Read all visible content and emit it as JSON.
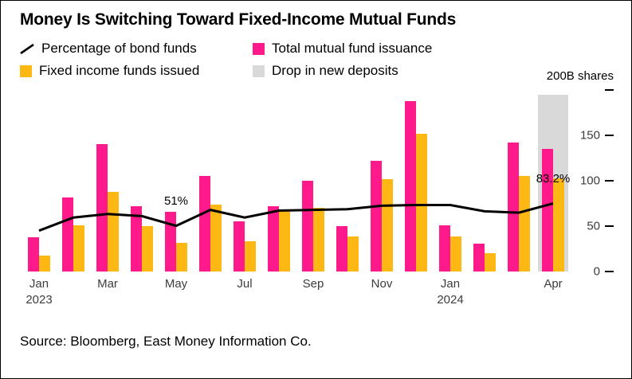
{
  "title": "Money Is Switching Toward Fixed-Income Mutual Funds",
  "source": "Source: Bloomberg, East Money Information Co.",
  "legend": {
    "items": [
      {
        "label": "Percentage of bond funds",
        "swatch": "line",
        "color": "#000000"
      },
      {
        "label": "Total mutual fund issuance",
        "swatch": "square",
        "color": "#ff1a8c"
      },
      {
        "label": "Fixed income funds issued",
        "swatch": "square",
        "color": "#fdb813"
      },
      {
        "label": "Drop in new deposits",
        "swatch": "square",
        "color": "#d9d9d9"
      }
    ]
  },
  "chart_data": {
    "type": "bar+line",
    "months": [
      "Jan 2023",
      "Feb 2023",
      "Mar 2023",
      "Apr 2023",
      "May 2023",
      "Jun 2023",
      "Jul 2023",
      "Aug 2023",
      "Sep 2023",
      "Oct 2023",
      "Nov 2023",
      "Dec 2023",
      "Jan 2024",
      "Feb 2024",
      "Mar 2024",
      "Apr 2024"
    ],
    "series": [
      {
        "name": "Total mutual fund issuance",
        "kind": "bar",
        "color": "#ff1a8c",
        "unit": "B shares",
        "values": [
          38,
          82,
          140,
          72,
          66,
          105,
          55,
          72,
          100,
          50,
          122,
          188,
          51,
          31,
          142,
          135
        ]
      },
      {
        "name": "Fixed income funds issued",
        "kind": "bar",
        "color": "#fdb813",
        "unit": "B shares",
        "values": [
          18,
          51,
          88,
          50,
          32,
          74,
          33,
          68,
          70,
          39,
          102,
          152,
          39,
          20,
          105,
          103
        ]
      },
      {
        "name": "Drop in new deposits",
        "kind": "bar-background",
        "color": "#d9d9d9",
        "unit": "B shares",
        "values": [
          null,
          null,
          null,
          null,
          null,
          null,
          null,
          null,
          null,
          null,
          null,
          null,
          null,
          null,
          null,
          195
        ]
      },
      {
        "name": "Percentage of bond funds",
        "kind": "line",
        "color": "#000000",
        "unit": "%",
        "values": [
          44,
          63,
          68,
          65,
          51,
          74,
          63,
          73,
          74,
          75,
          80,
          81,
          81,
          72,
          70,
          83.2
        ]
      }
    ],
    "annotations": [
      {
        "text": "51%",
        "month_index": 4
      },
      {
        "text": "83.2%",
        "month_index": 15
      }
    ],
    "y_axis": {
      "side": "right",
      "max": 200,
      "ticks": [
        0,
        50,
        100,
        150,
        200
      ],
      "top_label": "200B shares"
    },
    "x_axis": {
      "labels": [
        {
          "month_index": 0,
          "lines": [
            "Jan",
            "2023"
          ]
        },
        {
          "month_index": 2,
          "lines": [
            "Mar"
          ]
        },
        {
          "month_index": 4,
          "lines": [
            "May"
          ]
        },
        {
          "month_index": 6,
          "lines": [
            "Jul"
          ]
        },
        {
          "month_index": 8,
          "lines": [
            "Sep"
          ]
        },
        {
          "month_index": 10,
          "lines": [
            "Nov"
          ]
        },
        {
          "month_index": 12,
          "lines": [
            "Jan",
            "2024"
          ]
        },
        {
          "month_index": 15,
          "lines": [
            "Apr"
          ]
        }
      ]
    },
    "grid": false,
    "legend_position": "top"
  }
}
